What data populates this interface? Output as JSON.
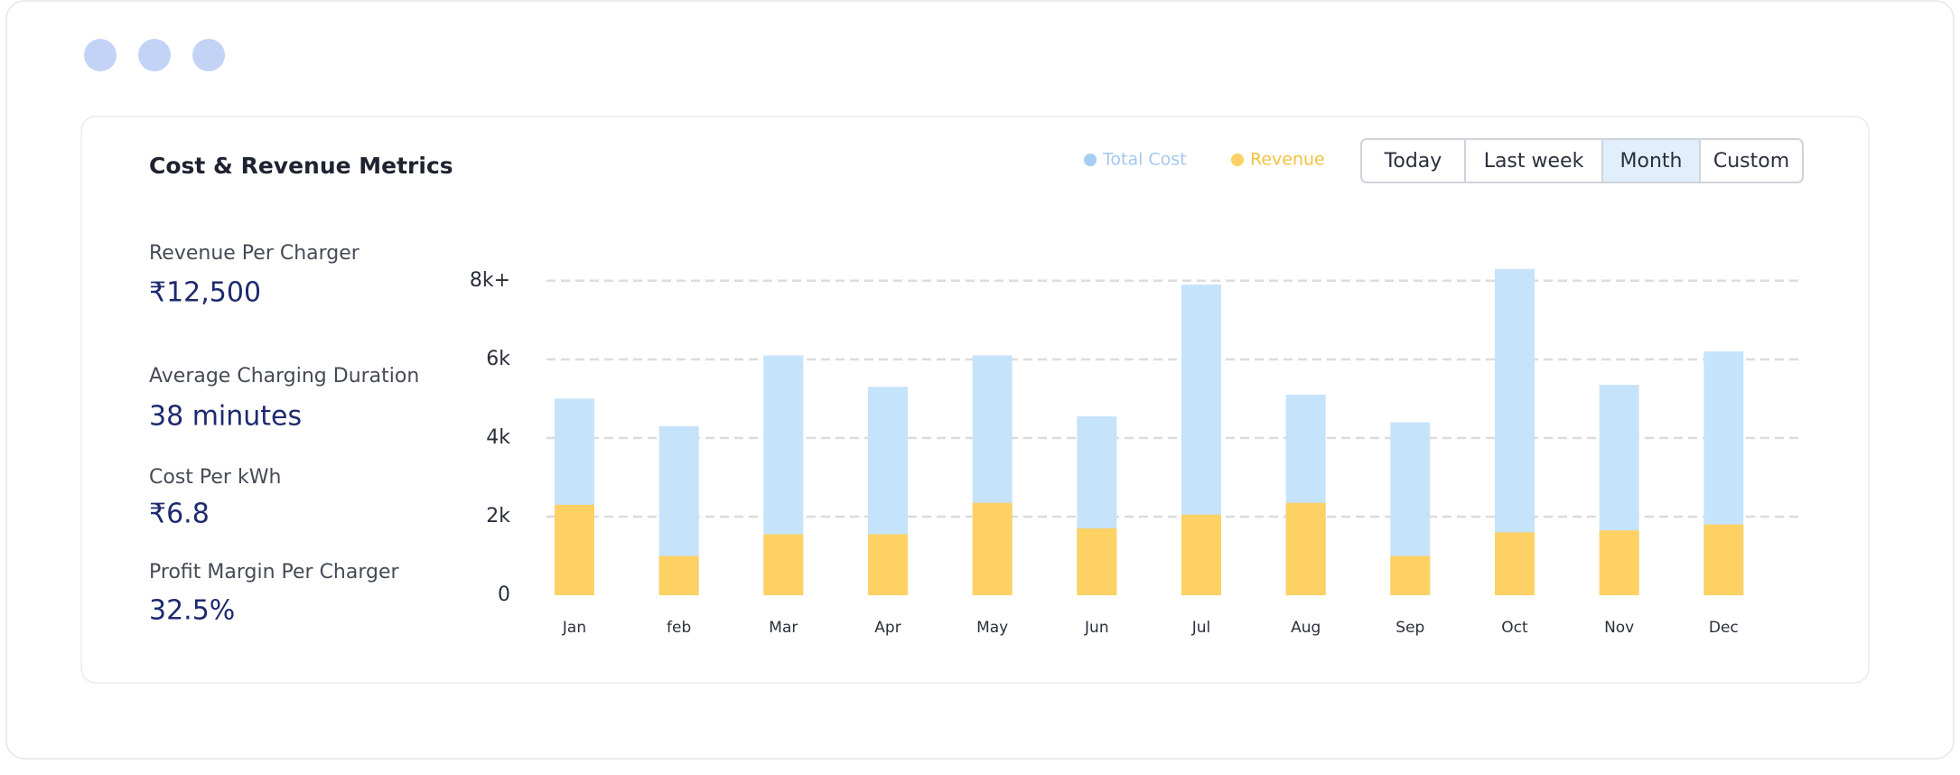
{
  "title": "Cost & Revenue Metrics",
  "metrics": [
    {
      "label": "Revenue Per Charger",
      "value": "₹12,500"
    },
    {
      "label": "Average Charging Duration",
      "value": "38 minutes"
    },
    {
      "label": "Cost Per kWh",
      "value": "₹6.8"
    },
    {
      "label": "Profit Margin Per Charger",
      "value": "32.5%"
    }
  ],
  "filters": [
    {
      "label": "Today",
      "selected": false
    },
    {
      "label": "Last week",
      "selected": false
    },
    {
      "label": "Month",
      "selected": true
    },
    {
      "label": "Custom",
      "selected": false
    }
  ],
  "chart_data": {
    "type": "bar",
    "categories": [
      "Jan",
      "feb",
      "Mar",
      "Apr",
      "May",
      "Jun",
      "Jul",
      "Aug",
      "Sep",
      "Oct",
      "Nov",
      "Dec"
    ],
    "series": [
      {
        "name": "Total Cost",
        "color": "#c6e3fc",
        "values": [
          5000,
          4300,
          6100,
          5300,
          6100,
          4550,
          7900,
          5100,
          4400,
          8300,
          5350,
          6200
        ]
      },
      {
        "name": "Revenue",
        "color": "#fdd164",
        "values": [
          2300,
          1000,
          1550,
          1550,
          2350,
          1700,
          2050,
          2350,
          1000,
          1600,
          1650,
          1800
        ]
      }
    ],
    "ylim": [
      0,
      8500
    ],
    "yticks": [
      0,
      {
        "value": 2000,
        "label": "2k"
      },
      {
        "value": 4000,
        "label": "4k"
      },
      {
        "value": 6000,
        "label": "6k"
      },
      {
        "value": 8000,
        "label": "8k+"
      }
    ],
    "grid": true
  }
}
